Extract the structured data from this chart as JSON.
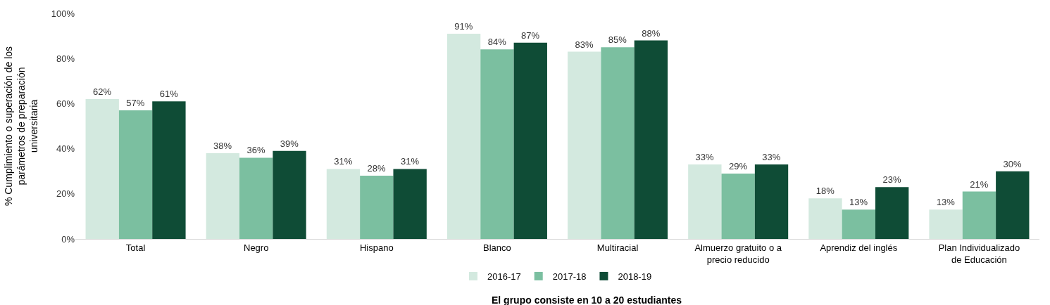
{
  "chart_data": {
    "type": "bar",
    "ylabel": "% Cumplimiento o superación de los parámetros de preparación universitaria",
    "categories": [
      "Total",
      "Negro",
      "Hispano",
      "Blanco",
      "Multiracial",
      "Almuerzo gratuito o a precio reducido",
      "Aprendiz del inglés",
      "Plan Individualizado de Educación"
    ],
    "series": [
      {
        "name": "2016-17",
        "color": "#d3e9df",
        "values": [
          62,
          38,
          31,
          91,
          83,
          33,
          18,
          13
        ],
        "value_labels": [
          "62%",
          "38%",
          "31%",
          "91%",
          "83%",
          "33%",
          "18%",
          "13%"
        ]
      },
      {
        "name": "2017-18",
        "color": "#7bbfa0",
        "values": [
          57,
          36,
          28,
          84,
          85,
          29,
          13,
          21
        ],
        "value_labels": [
          "57%",
          "36%",
          "28%",
          "84%",
          "85%",
          "29%",
          "13%",
          "21%"
        ]
      },
      {
        "name": "2018-19",
        "color": "#0f4c36",
        "values": [
          61,
          39,
          31,
          87,
          88,
          33,
          23,
          30
        ],
        "value_labels": [
          "61%",
          "39%",
          "31%",
          "87%",
          "88%",
          "33%",
          "23%",
          "30%"
        ]
      }
    ],
    "ylim": [
      0,
      100
    ],
    "yticks": [
      {
        "value": 0,
        "label": "0%"
      },
      {
        "value": 20,
        "label": "20%"
      },
      {
        "value": 40,
        "label": "40%"
      },
      {
        "value": 60,
        "label": "60%"
      },
      {
        "value": 80,
        "label": "80%"
      },
      {
        "value": 100,
        "label": "100%"
      }
    ],
    "grid": false,
    "legend": "bottom",
    "annotations": [
      "El grupo consiste en 10 a 20 estudiantes"
    ]
  }
}
